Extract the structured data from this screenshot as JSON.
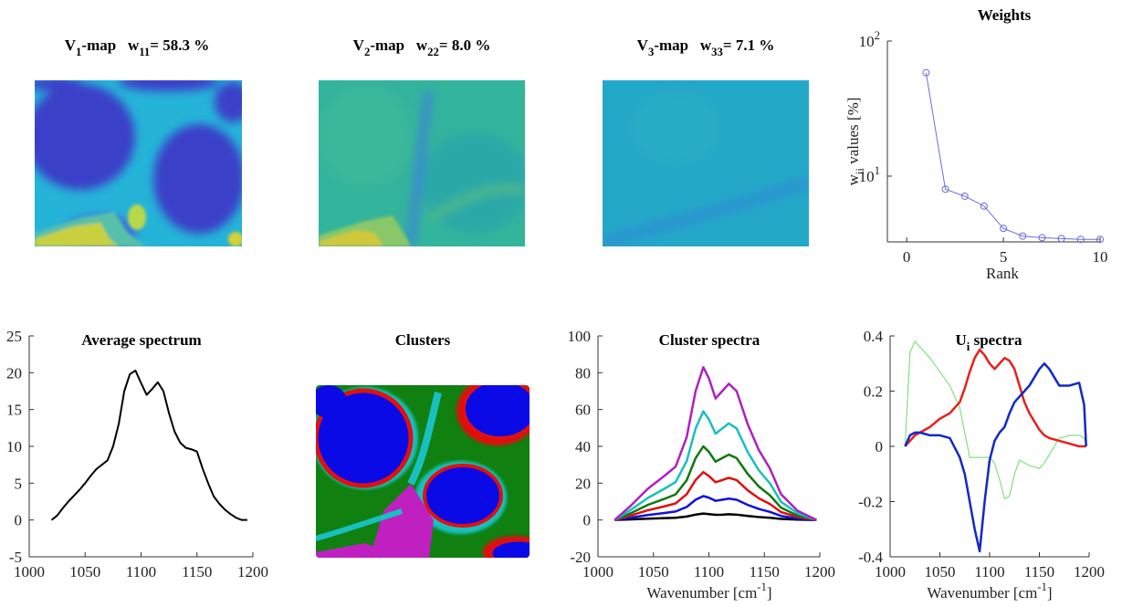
{
  "chart_data": [
    {
      "type": "image",
      "title": [
        "V",
        {
          "sub": "1"
        },
        "-map   w",
        {
          "sub": "11"
        },
        "= 58.3 %"
      ]
    },
    {
      "type": "image",
      "title": [
        "V",
        {
          "sub": "2"
        },
        "-map   w",
        {
          "sub": "22"
        },
        "= 8.0 %"
      ]
    },
    {
      "type": "image",
      "title": [
        "V",
        {
          "sub": "3"
        },
        "-map   w",
        {
          "sub": "33"
        },
        "= 7.1 %"
      ]
    },
    {
      "type": "line",
      "title": "Weights",
      "xlabel": "Rank",
      "ylabel": [
        "w",
        {
          "sub": "ii"
        },
        " values [%]"
      ],
      "x": [
        1,
        2,
        3,
        4,
        5,
        6,
        7,
        8,
        9,
        10
      ],
      "values": [
        58.3,
        8.0,
        7.1,
        6.0,
        4.1,
        3.6,
        3.5,
        3.45,
        3.4,
        3.4
      ],
      "color": "#6b6bdc",
      "marker": "circle",
      "yscale": "log",
      "xlim": [
        -1,
        10
      ],
      "xticks": [
        0,
        5,
        10
      ],
      "ylim": [
        3.26,
        100
      ],
      "yticks": [
        {
          "value": 10,
          "label": [
            "10",
            {
              "sup": "1"
            }
          ]
        },
        {
          "value": 100,
          "label": [
            "10",
            {
              "sup": "2"
            }
          ]
        }
      ]
    },
    {
      "type": "line",
      "title": "Average spectrum",
      "x": [
        1020,
        1025,
        1030,
        1035,
        1040,
        1045,
        1050,
        1055,
        1060,
        1065,
        1070,
        1075,
        1080,
        1085,
        1090,
        1095,
        1100,
        1105,
        1110,
        1115,
        1120,
        1125,
        1130,
        1135,
        1140,
        1145,
        1150,
        1155,
        1160,
        1165,
        1170,
        1175,
        1180,
        1185,
        1190,
        1195
      ],
      "values": [
        0,
        0.6,
        1.6,
        2.5,
        3.3,
        4.1,
        5,
        6,
        6.9,
        7.5,
        8.1,
        10,
        13,
        17.5,
        19.8,
        20.3,
        18.6,
        17,
        17.8,
        18.7,
        17.5,
        14.5,
        12,
        10.5,
        9.8,
        9.6,
        9.3,
        7,
        5,
        3.2,
        2.2,
        1.4,
        0.8,
        0.3,
        0,
        0
      ],
      "color": "#000000",
      "xlim": [
        1000,
        1200
      ],
      "xticks": [
        1000,
        1050,
        1100,
        1150,
        1200
      ],
      "ylim": [
        -5,
        25
      ],
      "yticks": [
        -5,
        0,
        5,
        10,
        15,
        20,
        25
      ]
    },
    {
      "type": "image",
      "title": "Clusters"
    },
    {
      "type": "line",
      "title": "Cluster spectra",
      "xlabel": [
        "Wavenumber [cm",
        {
          "sup": "-1"
        },
        "]"
      ],
      "x": [
        1015,
        1030,
        1045,
        1060,
        1070,
        1080,
        1088,
        1095,
        1100,
        1106,
        1112,
        1118,
        1125,
        1135,
        1145,
        1155,
        1165,
        1180,
        1197
      ],
      "series": [
        {
          "color": "#000000",
          "values": [
            0,
            0.3,
            0.7,
            1,
            1.2,
            1.9,
            2.9,
            3.5,
            3.2,
            2.8,
            2.9,
            3.1,
            2.9,
            2.2,
            1.6,
            1.2,
            0.6,
            0.2,
            0
          ]
        },
        {
          "color": "#1010e0",
          "values": [
            0,
            1.3,
            2.7,
            3.8,
            4.6,
            7.1,
            11,
            13,
            12.1,
            10.4,
            11,
            11.6,
            11,
            8.2,
            6,
            4.4,
            2.2,
            0.8,
            0
          ]
        },
        {
          "color": "#e01010",
          "values": [
            0,
            2.5,
            5.3,
            7.4,
            9,
            14,
            21.7,
            26,
            23.9,
            20.5,
            21.7,
            22.9,
            21.7,
            16.1,
            11.8,
            8.7,
            4.3,
            1.6,
            0
          ]
        },
        {
          "color": "#107810",
          "values": [
            0,
            3.8,
            8.2,
            11.5,
            13.9,
            21.6,
            33.6,
            40,
            37,
            31.7,
            33.6,
            35.5,
            33.6,
            25,
            18.2,
            13.4,
            6.7,
            2.4,
            0
          ]
        },
        {
          "color": "#18c0c0",
          "values": [
            0,
            5.7,
            12,
            17,
            20.6,
            32,
            49.7,
            59,
            54.7,
            46.9,
            49.7,
            52.5,
            49.7,
            36.9,
            27,
            19.9,
            9.9,
            3.6,
            0
          ]
        },
        {
          "color": "#b020c0",
          "values": [
            0,
            8,
            17,
            24,
            29,
            45,
            70,
            83,
            77,
            66,
            70,
            74,
            70,
            52,
            38,
            28,
            14,
            5,
            0
          ]
        }
      ],
      "xlim": [
        1000,
        1200
      ],
      "xticks": [
        1000,
        1050,
        1100,
        1150,
        1200
      ],
      "ylim": [
        -20,
        100
      ],
      "yticks": [
        -20,
        0,
        20,
        40,
        60,
        80,
        100
      ]
    },
    {
      "type": "line",
      "title": [
        "U",
        {
          "sub": "i"
        },
        " spectra"
      ],
      "xlabel": [
        "Wavenumber [cm",
        {
          "sup": "-1"
        },
        "]"
      ],
      "x": [
        1015,
        1020,
        1025,
        1030,
        1040,
        1050,
        1060,
        1070,
        1075,
        1080,
        1085,
        1090,
        1095,
        1100,
        1105,
        1110,
        1115,
        1120,
        1125,
        1130,
        1135,
        1140,
        1150,
        1155,
        1160,
        1170,
        1180,
        1190,
        1195,
        1197
      ],
      "series": [
        {
          "color": "#80e080",
          "values": [
            0,
            0.34,
            0.38,
            0.36,
            0.32,
            0.27,
            0.22,
            0.14,
            0.05,
            -0.04,
            -0.04,
            -0.04,
            -0.04,
            -0.04,
            -0.06,
            -0.12,
            -0.19,
            -0.18,
            -0.1,
            -0.05,
            -0.06,
            -0.07,
            -0.08,
            -0.06,
            -0.03,
            0.03,
            0.04,
            0.04,
            0.03,
            0
          ]
        },
        {
          "color": "#e8201b",
          "values": [
            0,
            0.02,
            0.04,
            0.05,
            0.07,
            0.1,
            0.12,
            0.16,
            0.21,
            0.27,
            0.32,
            0.35,
            0.33,
            0.3,
            0.28,
            0.3,
            0.32,
            0.31,
            0.28,
            0.22,
            0.16,
            0.12,
            0.06,
            0.04,
            0.03,
            0.02,
            0.01,
            0,
            0,
            0
          ]
        },
        {
          "color": "#1228c8",
          "values": [
            0,
            0.04,
            0.05,
            0.05,
            0.04,
            0.04,
            0.03,
            -0.04,
            -0.1,
            -0.2,
            -0.3,
            -0.38,
            -0.2,
            -0.05,
            0.02,
            0.05,
            0.07,
            0.12,
            0.16,
            0.18,
            0.2,
            0.22,
            0.28,
            0.3,
            0.28,
            0.22,
            0.22,
            0.23,
            0.15,
            0
          ]
        }
      ],
      "xlim": [
        1000,
        1200
      ],
      "xticks": [
        1000,
        1050,
        1100,
        1150,
        1200
      ],
      "ylim": [
        -0.4,
        0.4
      ],
      "yticks": [
        -0.4,
        -0.2,
        0,
        0.2,
        0.4
      ]
    }
  ]
}
